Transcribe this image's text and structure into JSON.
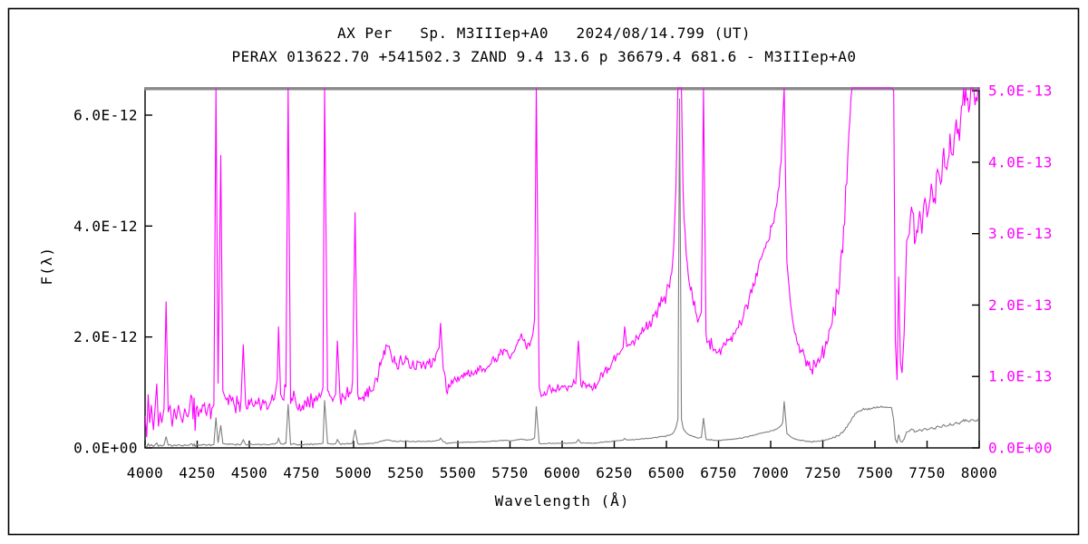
{
  "frame": {
    "border_color": "#000000",
    "background": "#ffffff",
    "plot_top_bar_color": "#8a8a8a"
  },
  "titles": {
    "line1": "AX Per   Sp. M3IIIep+A0   2024/08/14.799 (UT)",
    "line2": "PERAX 013622.70 +541502.3 ZAND 9.4 13.6 p 36679.4 681.6 - M3IIIep+A0"
  },
  "chart_data": {
    "type": "line",
    "title": "AX Per   Sp. M3IIIep+A0   2024/08/14.799 (UT)",
    "subtitle": "PERAX 013622.70 +541502.3 ZAND 9.4 13.6 p 36679.4 681.6 - M3IIIep+A0",
    "xlabel": "Wavelength (Å)",
    "ylabel": "F(λ)",
    "grid": false,
    "legend": "none",
    "xlim": [
      4000,
      8000
    ],
    "x_tick_labels": [
      "4000",
      "4250",
      "4500",
      "4750",
      "5000",
      "5250",
      "5500",
      "5750",
      "6000",
      "6250",
      "6500",
      "6750",
      "7000",
      "7250",
      "7500",
      "7750",
      "8000"
    ],
    "x_tick_values": [
      4000,
      4250,
      4500,
      4750,
      5000,
      5250,
      5500,
      5750,
      6000,
      6250,
      6500,
      6750,
      7000,
      7250,
      7500,
      7750,
      8000
    ],
    "left_axis": {
      "color": "#000000",
      "lim": [
        0,
        6.49e-12
      ],
      "tick_values": [
        0,
        2e-12,
        4e-12,
        6e-12
      ],
      "tick_labels": [
        "0.0E+00",
        "2.0E-12",
        "4.0E-12",
        "6.0E-12"
      ]
    },
    "right_axis": {
      "color": "#ff00ff",
      "lim": [
        0,
        5.04e-13
      ],
      "tick_values": [
        0,
        1e-13,
        2e-13,
        3e-13,
        4e-13,
        5e-13
      ],
      "tick_labels": [
        "0.0E+00",
        "1.0E-13",
        "2.0E-13",
        "3.0E-13",
        "4.0E-13",
        "5.0E-13"
      ]
    },
    "series": [
      {
        "name": "spectrum-left-scale",
        "color": "#7f7f7f",
        "axis": "left"
      },
      {
        "name": "spectrum-right-scale",
        "color": "#ff00ff",
        "axis": "right"
      }
    ],
    "note_series_share_same_flux_samples": true,
    "flux_sample_unit": 1e-13,
    "samples": [
      [
        4000,
        0.45
      ],
      [
        4008,
        0.15
      ],
      [
        4015,
        0.75
      ],
      [
        4022,
        0.35
      ],
      [
        4030,
        0.6
      ],
      [
        4040,
        0.25
      ],
      [
        4048,
        0.55
      ],
      [
        4056,
        0.9
      ],
      [
        4064,
        0.3
      ],
      [
        4072,
        0.5
      ],
      [
        4080,
        0.35
      ],
      [
        4091,
        0.55
      ],
      [
        4101,
        2.05
      ],
      [
        4111,
        0.5
      ],
      [
        4120,
        0.6
      ],
      [
        4130,
        0.3
      ],
      [
        4140,
        0.55
      ],
      [
        4150,
        0.4
      ],
      [
        4160,
        0.6
      ],
      [
        4170,
        0.45
      ],
      [
        4180,
        0.35
      ],
      [
        4190,
        0.55
      ],
      [
        4200,
        0.45
      ],
      [
        4215,
        0.6
      ],
      [
        4230,
        0.4
      ],
      [
        4245,
        0.55
      ],
      [
        4260,
        0.5
      ],
      [
        4275,
        0.6
      ],
      [
        4290,
        0.5
      ],
      [
        4305,
        0.6
      ],
      [
        4320,
        0.55
      ],
      [
        4330,
        0.6
      ],
      [
        4340,
        5.5
      ],
      [
        4350,
        0.9
      ],
      [
        4363,
        4.1
      ],
      [
        4373,
        0.8
      ],
      [
        4385,
        0.7
      ],
      [
        4400,
        0.6
      ],
      [
        4415,
        0.65
      ],
      [
        4430,
        0.58
      ],
      [
        4445,
        0.62
      ],
      [
        4460,
        0.66
      ],
      [
        4471,
        1.45
      ],
      [
        4482,
        0.62
      ],
      [
        4500,
        0.6
      ],
      [
        4520,
        0.58
      ],
      [
        4540,
        0.62
      ],
      [
        4560,
        0.6
      ],
      [
        4580,
        0.64
      ],
      [
        4600,
        0.62
      ],
      [
        4620,
        0.68
      ],
      [
        4634,
        0.95
      ],
      [
        4640,
        1.7
      ],
      [
        4650,
        0.75
      ],
      [
        4660,
        0.68
      ],
      [
        4675,
        0.85
      ],
      [
        4686,
        7.9
      ],
      [
        4698,
        0.62
      ],
      [
        4713,
        0.8
      ],
      [
        4725,
        0.6
      ],
      [
        4740,
        0.62
      ],
      [
        4755,
        0.6
      ],
      [
        4770,
        0.65
      ],
      [
        4785,
        0.63
      ],
      [
        4800,
        0.67
      ],
      [
        4815,
        0.65
      ],
      [
        4830,
        0.7
      ],
      [
        4845,
        0.75
      ],
      [
        4853,
        0.85
      ],
      [
        4861,
        8.6
      ],
      [
        4875,
        0.8
      ],
      [
        4890,
        0.72
      ],
      [
        4905,
        0.7
      ],
      [
        4914,
        0.75
      ],
      [
        4922,
        1.5
      ],
      [
        4935,
        0.7
      ],
      [
        4950,
        0.72
      ],
      [
        4965,
        0.74
      ],
      [
        4980,
        0.78
      ],
      [
        4995,
        0.95
      ],
      [
        5007,
        3.3
      ],
      [
        5020,
        0.75
      ],
      [
        5040,
        0.7
      ],
      [
        5060,
        0.72
      ],
      [
        5080,
        0.8
      ],
      [
        5100,
        0.9
      ],
      [
        5120,
        1.05
      ],
      [
        5140,
        1.25
      ],
      [
        5165,
        1.42
      ],
      [
        5180,
        1.3
      ],
      [
        5200,
        1.18
      ],
      [
        5220,
        1.22
      ],
      [
        5240,
        1.18
      ],
      [
        5260,
        1.25
      ],
      [
        5280,
        1.15
      ],
      [
        5300,
        1.1
      ],
      [
        5320,
        1.2
      ],
      [
        5340,
        1.15
      ],
      [
        5360,
        1.18
      ],
      [
        5380,
        1.25
      ],
      [
        5400,
        1.35
      ],
      [
        5410,
        1.4
      ],
      [
        5417,
        1.75
      ],
      [
        5430,
        1.1
      ],
      [
        5445,
        0.78
      ],
      [
        5460,
        0.85
      ],
      [
        5480,
        0.95
      ],
      [
        5500,
        1.0
      ],
      [
        5520,
        1.02
      ],
      [
        5540,
        1.05
      ],
      [
        5560,
        1.0
      ],
      [
        5580,
        1.05
      ],
      [
        5600,
        1.08
      ],
      [
        5620,
        1.1
      ],
      [
        5640,
        1.12
      ],
      [
        5660,
        1.18
      ],
      [
        5680,
        1.25
      ],
      [
        5700,
        1.3
      ],
      [
        5720,
        1.38
      ],
      [
        5740,
        1.32
      ],
      [
        5755,
        1.28
      ],
      [
        5770,
        1.35
      ],
      [
        5785,
        1.45
      ],
      [
        5800,
        1.55
      ],
      [
        5815,
        1.5
      ],
      [
        5830,
        1.38
      ],
      [
        5845,
        1.42
      ],
      [
        5860,
        1.6
      ],
      [
        5868,
        1.8
      ],
      [
        5876,
        7.5
      ],
      [
        5890,
        0.85
      ],
      [
        5900,
        0.72
      ],
      [
        5915,
        0.78
      ],
      [
        5930,
        0.8
      ],
      [
        5945,
        0.82
      ],
      [
        5960,
        0.8
      ],
      [
        5975,
        0.83
      ],
      [
        5990,
        0.82
      ],
      [
        6005,
        0.85
      ],
      [
        6020,
        0.83
      ],
      [
        6035,
        0.86
      ],
      [
        6050,
        0.88
      ],
      [
        6065,
        0.9
      ],
      [
        6078,
        1.5
      ],
      [
        6090,
        0.88
      ],
      [
        6105,
        0.9
      ],
      [
        6120,
        0.88
      ],
      [
        6135,
        0.85
      ],
      [
        6150,
        0.83
      ],
      [
        6165,
        0.88
      ],
      [
        6180,
        0.95
      ],
      [
        6200,
        1.05
      ],
      [
        6220,
        1.12
      ],
      [
        6240,
        1.2
      ],
      [
        6260,
        1.28
      ],
      [
        6280,
        1.35
      ],
      [
        6292,
        1.4
      ],
      [
        6300,
        1.7
      ],
      [
        6310,
        1.42
      ],
      [
        6320,
        1.45
      ],
      [
        6340,
        1.5
      ],
      [
        6360,
        1.55
      ],
      [
        6380,
        1.6
      ],
      [
        6400,
        1.68
      ],
      [
        6420,
        1.78
      ],
      [
        6440,
        1.85
      ],
      [
        6460,
        1.95
      ],
      [
        6480,
        2.05
      ],
      [
        6500,
        2.15
      ],
      [
        6515,
        2.25
      ],
      [
        6530,
        2.6
      ],
      [
        6545,
        3.6
      ],
      [
        6555,
        5.2
      ],
      [
        6563,
        63
      ],
      [
        6572,
        5.2
      ],
      [
        6580,
        3.6
      ],
      [
        6595,
        2.7
      ],
      [
        6610,
        2.3
      ],
      [
        6625,
        2.1
      ],
      [
        6640,
        1.9
      ],
      [
        6655,
        1.8
      ],
      [
        6668,
        1.9
      ],
      [
        6678,
        5.4
      ],
      [
        6690,
        1.6
      ],
      [
        6705,
        1.5
      ],
      [
        6720,
        1.42
      ],
      [
        6735,
        1.38
      ],
      [
        6750,
        1.35
      ],
      [
        6765,
        1.4
      ],
      [
        6780,
        1.45
      ],
      [
        6795,
        1.5
      ],
      [
        6810,
        1.55
      ],
      [
        6825,
        1.6
      ],
      [
        6840,
        1.68
      ],
      [
        6855,
        1.75
      ],
      [
        6870,
        1.85
      ],
      [
        6885,
        2.0
      ],
      [
        6900,
        2.15
      ],
      [
        6915,
        2.3
      ],
      [
        6930,
        2.45
      ],
      [
        6945,
        2.6
      ],
      [
        6960,
        2.7
      ],
      [
        6975,
        2.8
      ],
      [
        6990,
        2.9
      ],
      [
        7005,
        3.1
      ],
      [
        7020,
        3.3
      ],
      [
        7035,
        3.6
      ],
      [
        7050,
        4.0
      ],
      [
        7058,
        4.6
      ],
      [
        7065,
        8.4
      ],
      [
        7078,
        2.6
      ],
      [
        7090,
        2.2
      ],
      [
        7105,
        1.8
      ],
      [
        7120,
        1.6
      ],
      [
        7135,
        1.45
      ],
      [
        7150,
        1.35
      ],
      [
        7165,
        1.25
      ],
      [
        7180,
        1.15
      ],
      [
        7196,
        1.1
      ],
      [
        7212,
        1.18
      ],
      [
        7228,
        1.25
      ],
      [
        7244,
        1.3
      ],
      [
        7260,
        1.38
      ],
      [
        7275,
        1.5
      ],
      [
        7290,
        1.7
      ],
      [
        7305,
        1.9
      ],
      [
        7320,
        2.2
      ],
      [
        7335,
        2.6
      ],
      [
        7350,
        3.1
      ],
      [
        7365,
        3.7
      ],
      [
        7380,
        4.6
      ],
      [
        7395,
        5.6
      ],
      [
        7410,
        6.2
      ],
      [
        7425,
        6.6
      ],
      [
        7440,
        6.9
      ],
      [
        7460,
        7.0
      ],
      [
        7480,
        7.1
      ],
      [
        7500,
        7.2
      ],
      [
        7520,
        7.3
      ],
      [
        7540,
        7.4
      ],
      [
        7560,
        7.3
      ],
      [
        7580,
        7.2
      ],
      [
        7590,
        5.0
      ],
      [
        7598,
        1.5
      ],
      [
        7606,
        0.95
      ],
      [
        7614,
        2.4
      ],
      [
        7622,
        1.2
      ],
      [
        7630,
        1.05
      ],
      [
        7640,
        1.6
      ],
      [
        7652,
        2.9
      ],
      [
        7665,
        3.0
      ],
      [
        7680,
        3.3
      ],
      [
        7695,
        2.9
      ],
      [
        7710,
        3.2
      ],
      [
        7725,
        3.0
      ],
      [
        7740,
        3.5
      ],
      [
        7755,
        3.3
      ],
      [
        7770,
        3.7
      ],
      [
        7785,
        3.5
      ],
      [
        7800,
        3.9
      ],
      [
        7815,
        3.7
      ],
      [
        7830,
        4.2
      ],
      [
        7845,
        3.9
      ],
      [
        7860,
        4.4
      ],
      [
        7875,
        4.1
      ],
      [
        7890,
        4.6
      ],
      [
        7905,
        4.3
      ],
      [
        7920,
        4.8
      ],
      [
        7935,
        5.1
      ],
      [
        7950,
        4.7
      ],
      [
        7965,
        5.1
      ],
      [
        7980,
        4.8
      ],
      [
        8000,
        5.1
      ]
    ],
    "noise_regions": [
      [
        4000,
        4250,
        0.28
      ],
      [
        4250,
        4480,
        0.18
      ],
      [
        4480,
        5450,
        0.11
      ],
      [
        5450,
        6380,
        0.07
      ],
      [
        6380,
        7300,
        0.11
      ],
      [
        7300,
        8000,
        0.22
      ]
    ]
  }
}
